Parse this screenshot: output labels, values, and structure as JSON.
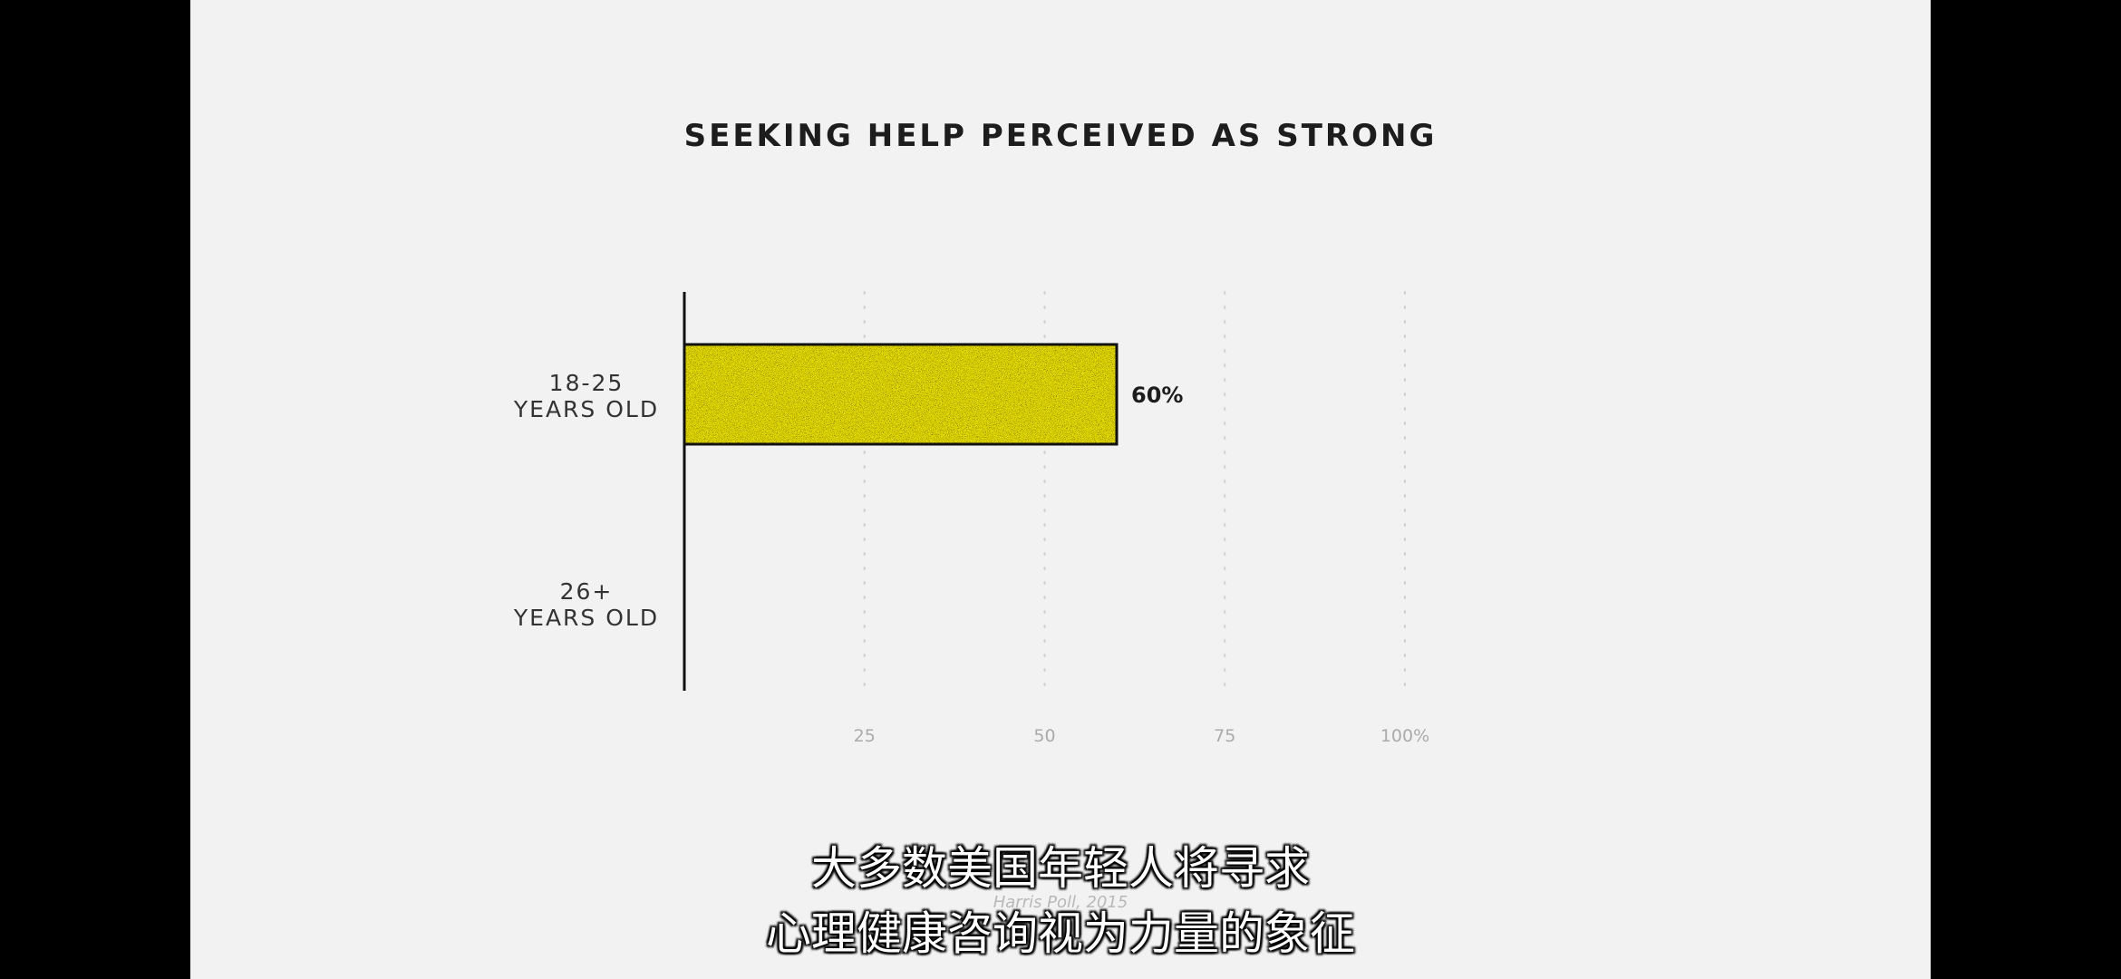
{
  "chart_data": {
    "type": "bar",
    "orientation": "horizontal",
    "title": "SEEKING HELP PERCEIVED AS STRONG",
    "categories": [
      "18-25 YEARS OLD",
      "26+ YEARS OLD"
    ],
    "category_lines": [
      [
        "18-25",
        "YEARS OLD"
      ],
      [
        "26+",
        "YEARS OLD"
      ]
    ],
    "values": [
      60,
      null
    ],
    "data_labels": [
      "60%",
      ""
    ],
    "xlim": [
      0,
      100
    ],
    "xticks": [
      25,
      50,
      75,
      100
    ],
    "xtick_labels": [
      "25",
      "50",
      "75",
      "100%"
    ],
    "grid": "dotted vertical",
    "source": "Harris Poll, 2015",
    "bar_color": "#f5ea0a"
  },
  "subtitles": {
    "line1": "大多数美国年轻人将寻求",
    "line2": "心理健康咨询视为力量的象征"
  },
  "colors": {
    "frame": "#000000",
    "background": "#f2f2f2",
    "bar_fill": "#f5ea0a",
    "ink": "#1d1d1d"
  }
}
